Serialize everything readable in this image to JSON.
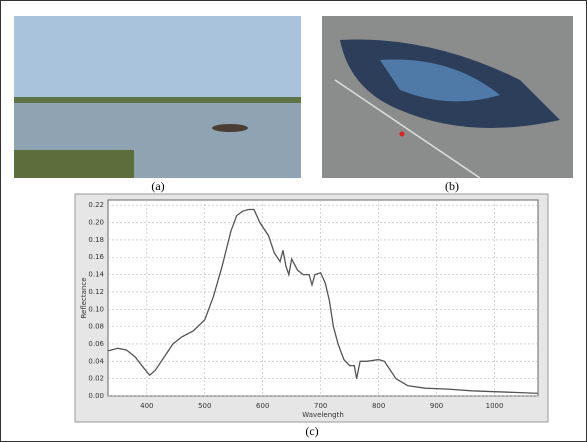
{
  "captions": [
    "(a)",
    "(b)",
    "(c)"
  ],
  "chart_data": {
    "type": "line",
    "x_label": "Wavelength",
    "y_label": "Reflectance",
    "color": "#555555",
    "grid": true,
    "x": [
      333,
      350,
      365,
      380,
      395,
      405,
      415,
      430,
      445,
      460,
      480,
      500,
      515,
      530,
      545,
      555,
      565,
      575,
      585,
      595,
      610,
      620,
      630,
      635,
      640,
      645,
      650,
      660,
      670,
      680,
      685,
      690,
      700,
      708,
      715,
      722,
      730,
      740,
      750,
      758,
      762,
      768,
      780,
      800,
      810,
      820,
      830,
      850,
      880,
      920,
      960,
      1000,
      1040,
      1075
    ],
    "values": [
      0.052,
      0.055,
      0.053,
      0.045,
      0.032,
      0.024,
      0.03,
      0.045,
      0.06,
      0.068,
      0.075,
      0.088,
      0.115,
      0.15,
      0.19,
      0.208,
      0.213,
      0.215,
      0.215,
      0.2,
      0.185,
      0.165,
      0.155,
      0.168,
      0.15,
      0.14,
      0.158,
      0.145,
      0.14,
      0.14,
      0.128,
      0.14,
      0.142,
      0.13,
      0.11,
      0.08,
      0.06,
      0.042,
      0.035,
      0.035,
      0.02,
      0.04,
      0.04,
      0.042,
      0.04,
      0.03,
      0.02,
      0.012,
      0.009,
      0.008,
      0.006,
      0.005,
      0.004,
      0.003
    ],
    "xlim": [
      333,
      1075
    ],
    "xticks": [
      400,
      500,
      600,
      700,
      800,
      900,
      1000
    ],
    "ylim": [
      0,
      0.226
    ],
    "yticks": [
      {
        "value": 0,
        "label": "0.00"
      },
      {
        "value": 0.02,
        "label": "0.02"
      },
      {
        "value": 0.04,
        "label": "0.04"
      },
      {
        "value": 0.06,
        "label": "0.06"
      },
      {
        "value": 0.08,
        "label": "0.08"
      },
      {
        "value": 0.1,
        "label": "0.10"
      },
      {
        "value": 0.12,
        "label": "0.12"
      },
      {
        "value": 0.14,
        "label": "0.14"
      },
      {
        "value": 0.16,
        "label": "0.16"
      },
      {
        "value": 0.18,
        "label": "0.18"
      },
      {
        "value": 0.2,
        "label": "0.20"
      },
      {
        "value": 0.22,
        "label": "0.22"
      }
    ]
  }
}
